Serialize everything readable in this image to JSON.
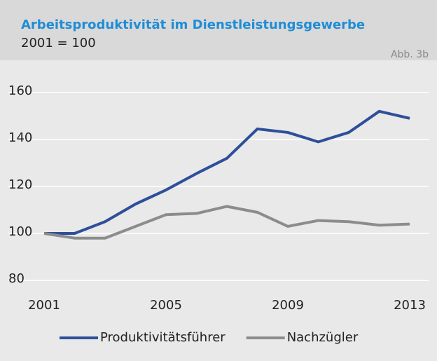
{
  "chart_data": {
    "type": "line",
    "title": "Arbeitsproduktivität im Dienstleistungsgewerbe",
    "subtitle": "2001 = 100",
    "figure_label": "Abb. 3b",
    "x": [
      2001,
      2002,
      2003,
      2004,
      2005,
      2006,
      2007,
      2008,
      2009,
      2010,
      2011,
      2012,
      2013
    ],
    "series": [
      {
        "name": "Produktivitätsführer",
        "color": "#2e4f9a",
        "values": [
          100,
          100,
          105,
          112.5,
          118.5,
          125.5,
          132,
          144.5,
          143,
          139,
          143,
          152,
          149
        ]
      },
      {
        "name": "Nachzügler",
        "color": "#8c8c8c",
        "values": [
          100,
          98,
          98,
          103,
          108,
          108.5,
          111.5,
          109,
          103,
          105.5,
          105,
          103.5,
          104
        ]
      }
    ],
    "xlim": [
      2001,
      2013
    ],
    "xticks": [
      2001,
      2005,
      2009,
      2013
    ],
    "ylim": [
      80,
      160
    ],
    "yticks": [
      80,
      100,
      120,
      140,
      160
    ],
    "grid": true,
    "legend": "bottom"
  }
}
